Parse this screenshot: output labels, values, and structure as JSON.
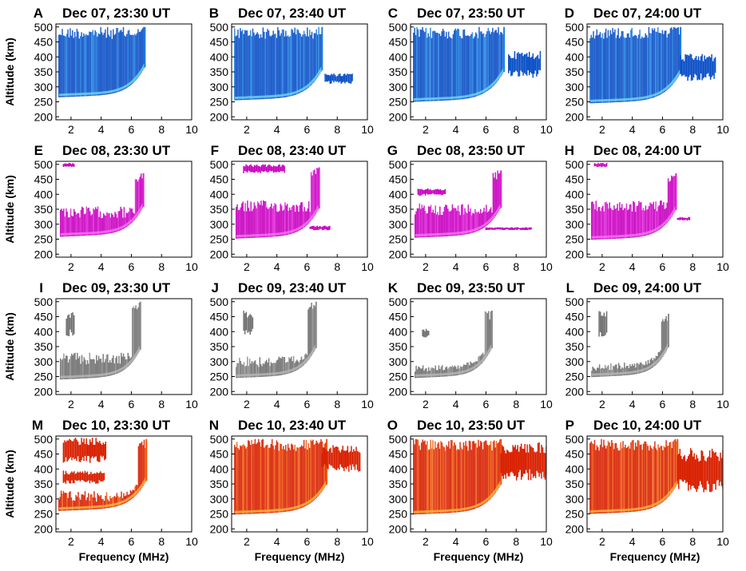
{
  "chart_data": {
    "type": "scatter",
    "description_kind": "ionogram grid",
    "xlabel": "Frequency (MHz)",
    "ylabel": "Altitude (km)",
    "xlim": [
      1,
      10
    ],
    "ylim": [
      190,
      510
    ],
    "xticks": [
      2,
      4,
      6,
      8,
      10
    ],
    "yticks": [
      200,
      250,
      300,
      350,
      400,
      450,
      500
    ],
    "rows": [
      {
        "date": "Dec 07",
        "colors": {
          "dark": "#0a4fc7",
          "mid": "#1e7fe0",
          "light": "#6fd0f0"
        },
        "panels": [
          {
            "letter": "A",
            "title": "Dec 07, 23:30 UT",
            "trace": {
              "f_start": 1.2,
              "f_end": 6.9,
              "h_min": 265,
              "h_top": 500,
              "spread_top": 500,
              "extra_clusters": []
            }
          },
          {
            "letter": "B",
            "title": "Dec 07, 23:40 UT",
            "trace": {
              "f_start": 1.2,
              "f_end": 7.0,
              "h_min": 255,
              "h_top": 500,
              "spread_top": 500,
              "extra_clusters": [
                {
                  "f_min": 7.2,
                  "f_max": 9.0,
                  "h_min": 310,
                  "h_max": 345
                }
              ]
            }
          },
          {
            "letter": "C",
            "title": "Dec 07, 23:50 UT",
            "trace": {
              "f_start": 1.2,
              "f_end": 7.2,
              "h_min": 250,
              "h_top": 500,
              "spread_top": 500,
              "extra_clusters": [
                {
                  "f_min": 7.5,
                  "f_max": 9.6,
                  "h_min": 330,
                  "h_max": 420
                }
              ]
            }
          },
          {
            "letter": "D",
            "title": "Dec 07, 24:00 UT",
            "trace": {
              "f_start": 1.2,
              "f_end": 7.2,
              "h_min": 245,
              "h_top": 500,
              "spread_top": 500,
              "extra_clusters": [
                {
                  "f_min": 7.2,
                  "f_max": 9.5,
                  "h_min": 320,
                  "h_max": 410
                }
              ]
            }
          }
        ]
      },
      {
        "date": "Dec 08",
        "colors": {
          "dark": "#c800c0",
          "mid": "#e020d8",
          "light": "#f070f0"
        },
        "panels": [
          {
            "letter": "E",
            "title": "Dec 08, 23:30 UT",
            "trace": {
              "f_start": 1.3,
              "f_end": 6.8,
              "h_min": 258,
              "h_top": 470,
              "spread_top": 360,
              "extra_clusters": [
                {
                  "f_min": 1.5,
                  "f_max": 2.2,
                  "h_min": 490,
                  "h_max": 505
                }
              ]
            }
          },
          {
            "letter": "F",
            "title": "Dec 08, 23:40 UT",
            "trace": {
              "f_start": 1.3,
              "f_end": 6.8,
              "h_min": 252,
              "h_top": 490,
              "spread_top": 380,
              "extra_clusters": [
                {
                  "f_min": 1.8,
                  "f_max": 4.5,
                  "h_min": 470,
                  "h_max": 500
                },
                {
                  "f_min": 6.2,
                  "f_max": 7.5,
                  "h_min": 280,
                  "h_max": 295
                }
              ]
            }
          },
          {
            "letter": "G",
            "title": "Dec 08, 23:50 UT",
            "trace": {
              "f_start": 1.3,
              "f_end": 7.0,
              "h_min": 255,
              "h_top": 480,
              "spread_top": 370,
              "extra_clusters": [
                {
                  "f_min": 1.5,
                  "f_max": 3.3,
                  "h_min": 395,
                  "h_max": 420
                },
                {
                  "f_min": 6.0,
                  "f_max": 9.0,
                  "h_min": 280,
                  "h_max": 290
                }
              ]
            }
          },
          {
            "letter": "H",
            "title": "Dec 08, 24:00 UT",
            "trace": {
              "f_start": 1.3,
              "f_end": 6.9,
              "h_min": 248,
              "h_top": 470,
              "spread_top": 380,
              "extra_clusters": [
                {
                  "f_min": 1.5,
                  "f_max": 2.3,
                  "h_min": 490,
                  "h_max": 505
                },
                {
                  "f_min": 7.0,
                  "f_max": 7.8,
                  "h_min": 312,
                  "h_max": 324
                }
              ]
            }
          }
        ]
      },
      {
        "date": "Dec 09",
        "colors": {
          "dark": "#707070",
          "mid": "#8e8e8e",
          "light": "#b4b4b4"
        },
        "panels": [
          {
            "letter": "I",
            "title": "Dec 09, 23:30 UT",
            "trace": {
              "f_start": 1.3,
              "f_end": 6.6,
              "h_min": 240,
              "h_top": 500,
              "spread_top": 330,
              "extra_clusters": [
                {
                  "f_min": 1.7,
                  "f_max": 2.2,
                  "h_min": 380,
                  "h_max": 470
                }
              ]
            }
          },
          {
            "letter": "J",
            "title": "Dec 09, 23:40 UT",
            "trace": {
              "f_start": 1.3,
              "f_end": 6.6,
              "h_min": 245,
              "h_top": 500,
              "spread_top": 320,
              "extra_clusters": [
                {
                  "f_min": 1.8,
                  "f_max": 2.4,
                  "h_min": 390,
                  "h_max": 470
                }
              ]
            }
          },
          {
            "letter": "K",
            "title": "Dec 09, 23:50 UT",
            "trace": {
              "f_start": 1.3,
              "f_end": 6.4,
              "h_min": 245,
              "h_top": 470,
              "spread_top": 290,
              "extra_clusters": [
                {
                  "f_min": 1.8,
                  "f_max": 2.2,
                  "h_min": 380,
                  "h_max": 410
                }
              ]
            }
          },
          {
            "letter": "L",
            "title": "Dec 09, 24:00 UT",
            "trace": {
              "f_start": 1.3,
              "f_end": 6.4,
              "h_min": 248,
              "h_top": 460,
              "spread_top": 300,
              "extra_clusters": [
                {
                  "f_min": 1.8,
                  "f_max": 2.3,
                  "h_min": 380,
                  "h_max": 480
                }
              ]
            }
          }
        ]
      },
      {
        "date": "Dec 10",
        "colors": {
          "dark": "#d82000",
          "mid": "#f05a10",
          "light": "#f8b040"
        },
        "panels": [
          {
            "letter": "M",
            "title": "Dec 10, 23:30 UT",
            "trace": {
              "f_start": 1.2,
              "f_end": 7.0,
              "h_min": 260,
              "h_top": 500,
              "spread_top": 330,
              "extra_clusters": [
                {
                  "f_min": 1.5,
                  "f_max": 4.3,
                  "h_min": 420,
                  "h_max": 505
                },
                {
                  "f_min": 1.5,
                  "f_max": 4.2,
                  "h_min": 350,
                  "h_max": 395
                }
              ]
            }
          },
          {
            "letter": "N",
            "title": "Dec 10, 23:40 UT",
            "trace": {
              "f_start": 1.2,
              "f_end": 7.3,
              "h_min": 248,
              "h_top": 500,
              "spread_top": 500,
              "extra_clusters": [
                {
                  "f_min": 7.0,
                  "f_max": 9.5,
                  "h_min": 390,
                  "h_max": 480
                }
              ]
            }
          },
          {
            "letter": "O",
            "title": "Dec 10, 23:50 UT",
            "trace": {
              "f_start": 1.2,
              "f_end": 7.0,
              "h_min": 248,
              "h_top": 500,
              "spread_top": 500,
              "extra_clusters": [
                {
                  "f_min": 7.0,
                  "f_max": 10.0,
                  "h_min": 360,
                  "h_max": 490
                }
              ]
            }
          },
          {
            "letter": "P",
            "title": "Dec 10, 24:00 UT",
            "trace": {
              "f_start": 1.2,
              "f_end": 7.0,
              "h_min": 250,
              "h_top": 500,
              "spread_top": 500,
              "extra_clusters": [
                {
                  "f_min": 7.0,
                  "f_max": 10.0,
                  "h_min": 320,
                  "h_max": 470
                }
              ]
            }
          }
        ]
      }
    ]
  }
}
